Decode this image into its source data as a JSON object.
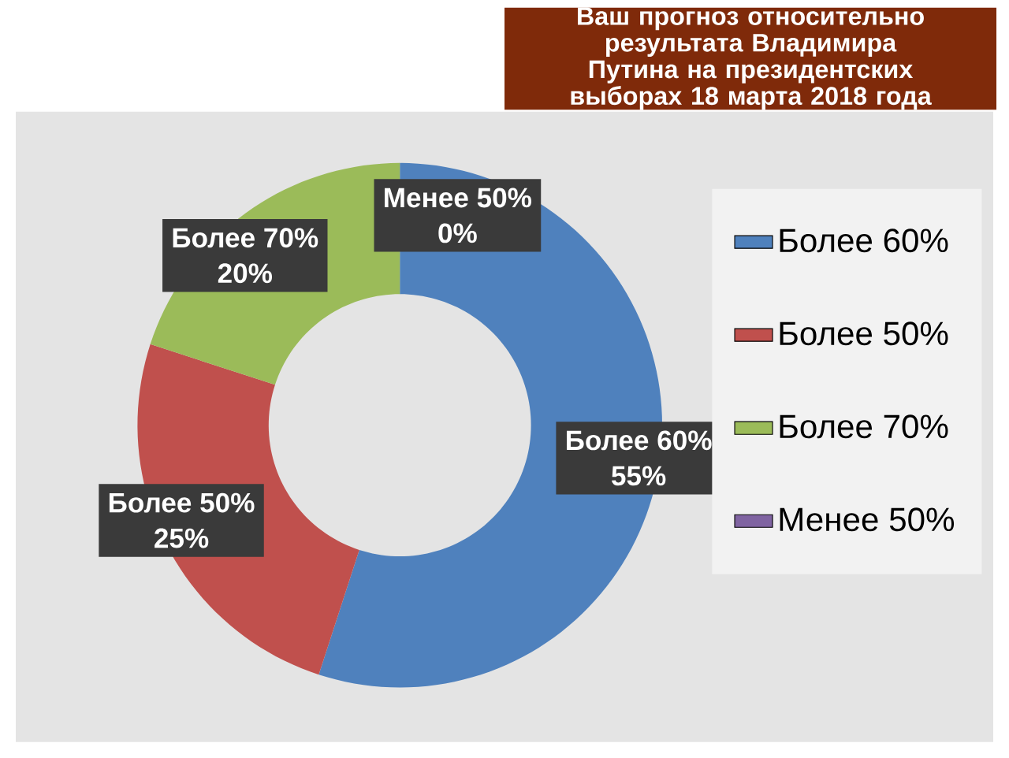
{
  "chart_data": {
    "type": "donut",
    "title": "Ваш прогноз относительно результата Владимира Путина на президентских выборах 18 марта 2018 года",
    "categories": [
      "Более 60%",
      "Более 50%",
      "Более 70%",
      "Менее 50%"
    ],
    "values": [
      55,
      25,
      20,
      0
    ],
    "colors": [
      "#4f81bd",
      "#c0504d",
      "#9bbb59",
      "#8064a2"
    ],
    "value_labels": [
      "55%",
      "25%",
      "20%",
      "0%"
    ],
    "legend": "right"
  }
}
